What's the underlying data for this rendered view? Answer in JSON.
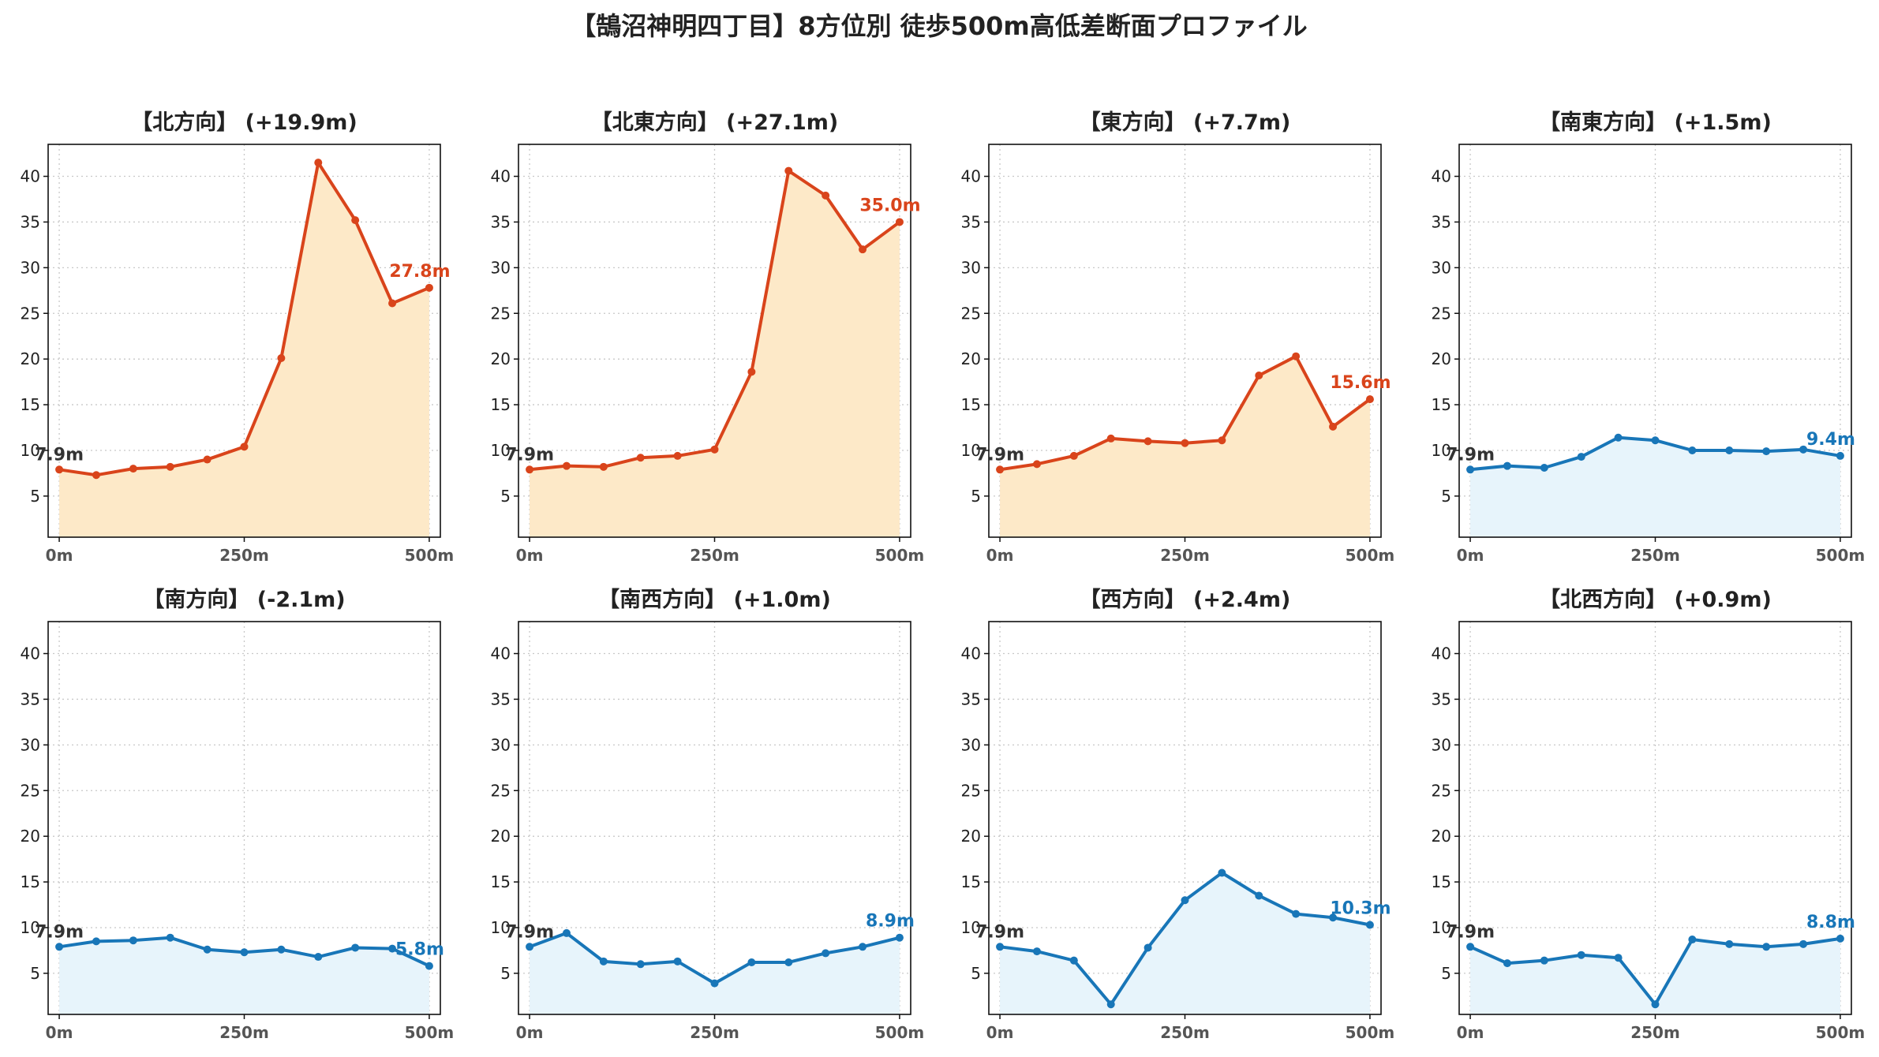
{
  "figure": {
    "title": "【鵠沼神明四丁目】8方位別 徒歩500m高低差断面プロファイル"
  },
  "colors": {
    "uphill_line": "#D9441B",
    "uphill_fill": "#FDE9C8",
    "flat_line": "#1876B8",
    "flat_fill": "#E7F4FB",
    "start_label": "#333333"
  },
  "chart_data": [
    {
      "type": "area",
      "title": "【北方向】 (+19.9m)",
      "style": "uphill",
      "x": [
        0,
        50,
        100,
        150,
        200,
        250,
        300,
        350,
        400,
        450,
        500
      ],
      "values": [
        7.9,
        7.3,
        8.0,
        8.2,
        9.0,
        10.4,
        20.1,
        41.5,
        35.2,
        26.1,
        27.8
      ],
      "start_label": "7.9m",
      "end_label": "27.8m",
      "xticks": [
        "0m",
        "250m",
        "500m"
      ],
      "yticks": [
        5,
        10,
        15,
        20,
        25,
        30,
        35,
        40
      ],
      "xlim": [
        -15,
        515
      ],
      "ylim": [
        0.5,
        43.5
      ],
      "grid": true
    },
    {
      "type": "area",
      "title": "【北東方向】 (+27.1m)",
      "style": "uphill",
      "x": [
        0,
        50,
        100,
        150,
        200,
        250,
        300,
        350,
        400,
        450,
        500
      ],
      "values": [
        7.9,
        8.3,
        8.2,
        9.2,
        9.4,
        10.1,
        18.6,
        40.6,
        37.9,
        32.0,
        35.0
      ],
      "start_label": "7.9m",
      "end_label": "35.0m",
      "xticks": [
        "0m",
        "250m",
        "500m"
      ],
      "yticks": [
        5,
        10,
        15,
        20,
        25,
        30,
        35,
        40
      ],
      "xlim": [
        -15,
        515
      ],
      "ylim": [
        0.5,
        43.5
      ],
      "grid": true
    },
    {
      "type": "area",
      "title": "【東方向】 (+7.7m)",
      "style": "uphill",
      "x": [
        0,
        50,
        100,
        150,
        200,
        250,
        300,
        350,
        400,
        450,
        500
      ],
      "values": [
        7.9,
        8.5,
        9.4,
        11.3,
        11.0,
        10.8,
        11.1,
        18.2,
        20.3,
        12.6,
        15.6
      ],
      "start_label": "7.9m",
      "end_label": "15.6m",
      "xticks": [
        "0m",
        "250m",
        "500m"
      ],
      "yticks": [
        5,
        10,
        15,
        20,
        25,
        30,
        35,
        40
      ],
      "xlim": [
        -15,
        515
      ],
      "ylim": [
        0.5,
        43.5
      ],
      "grid": true
    },
    {
      "type": "area",
      "title": "【南東方向】 (+1.5m)",
      "style": "flat",
      "x": [
        0,
        50,
        100,
        150,
        200,
        250,
        300,
        350,
        400,
        450,
        500
      ],
      "values": [
        7.9,
        8.3,
        8.1,
        9.3,
        11.4,
        11.1,
        10.0,
        10.0,
        9.9,
        10.1,
        9.4
      ],
      "start_label": "7.9m",
      "end_label": "9.4m",
      "xticks": [
        "0m",
        "250m",
        "500m"
      ],
      "yticks": [
        5,
        10,
        15,
        20,
        25,
        30,
        35,
        40
      ],
      "xlim": [
        -15,
        515
      ],
      "ylim": [
        0.5,
        43.5
      ],
      "grid": true
    },
    {
      "type": "area",
      "title": "【南方向】 (-2.1m)",
      "style": "flat",
      "x": [
        0,
        50,
        100,
        150,
        200,
        250,
        300,
        350,
        400,
        450,
        500
      ],
      "values": [
        7.9,
        8.5,
        8.6,
        8.9,
        7.6,
        7.3,
        7.6,
        6.8,
        7.8,
        7.7,
        5.8
      ],
      "start_label": "7.9m",
      "end_label": "5.8m",
      "xticks": [
        "0m",
        "250m",
        "500m"
      ],
      "yticks": [
        5,
        10,
        15,
        20,
        25,
        30,
        35,
        40
      ],
      "xlim": [
        -15,
        515
      ],
      "ylim": [
        0.5,
        43.5
      ],
      "grid": true
    },
    {
      "type": "area",
      "title": "【南西方向】 (+1.0m)",
      "style": "flat",
      "x": [
        0,
        50,
        100,
        150,
        200,
        250,
        300,
        350,
        400,
        450,
        500
      ],
      "values": [
        7.9,
        9.4,
        6.3,
        6.0,
        6.3,
        3.9,
        6.2,
        6.2,
        7.2,
        7.9,
        8.9
      ],
      "start_label": "7.9m",
      "end_label": "8.9m",
      "xticks": [
        "0m",
        "250m",
        "500m"
      ],
      "yticks": [
        5,
        10,
        15,
        20,
        25,
        30,
        35,
        40
      ],
      "xlim": [
        -15,
        515
      ],
      "ylim": [
        0.5,
        43.5
      ],
      "grid": true
    },
    {
      "type": "area",
      "title": "【西方向】 (+2.4m)",
      "style": "flat",
      "x": [
        0,
        50,
        100,
        150,
        200,
        250,
        300,
        350,
        400,
        450,
        500
      ],
      "values": [
        7.9,
        7.4,
        6.4,
        1.6,
        7.8,
        13.0,
        16.0,
        13.5,
        11.5,
        11.1,
        10.3
      ],
      "start_label": "7.9m",
      "end_label": "10.3m",
      "xticks": [
        "0m",
        "250m",
        "500m"
      ],
      "yticks": [
        5,
        10,
        15,
        20,
        25,
        30,
        35,
        40
      ],
      "xlim": [
        -15,
        515
      ],
      "ylim": [
        0.5,
        43.5
      ],
      "grid": true
    },
    {
      "type": "area",
      "title": "【北西方向】 (+0.9m)",
      "style": "flat",
      "x": [
        0,
        50,
        100,
        150,
        200,
        250,
        300,
        350,
        400,
        450,
        500
      ],
      "values": [
        7.9,
        6.1,
        6.4,
        7.0,
        6.7,
        1.6,
        8.7,
        8.2,
        7.9,
        8.2,
        8.8
      ],
      "start_label": "7.9m",
      "end_label": "8.8m",
      "xticks": [
        "0m",
        "250m",
        "500m"
      ],
      "yticks": [
        5,
        10,
        15,
        20,
        25,
        30,
        35,
        40
      ],
      "xlim": [
        -15,
        515
      ],
      "ylim": [
        0.5,
        43.5
      ],
      "grid": true
    }
  ]
}
